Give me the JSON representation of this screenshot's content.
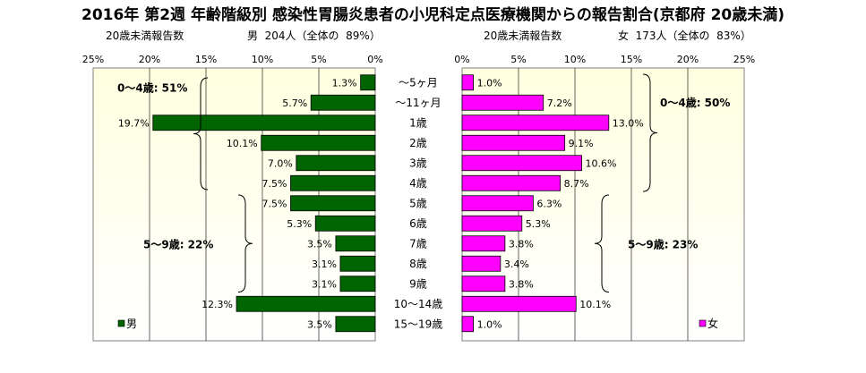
{
  "title": "2016年 第2週 年齢階級別 感染性胃腸炎患者の小児科定点医療機関からの報告割合(京都府 20歳未満)",
  "header": {
    "left_sub": "20歳未満報告数",
    "left_summary": "男  204人（全体の  89%）",
    "right_sub": "20歳未満報告数",
    "right_summary": "女  173人（全体の  83%）"
  },
  "colors": {
    "male_fill": "#006400",
    "female_fill": "#ff00ff",
    "plot_bg_top": "#ffffe0",
    "grid": "#000000"
  },
  "chart_data": [
    {
      "type": "bar",
      "orientation": "horizontal",
      "direction": "right-to-left",
      "series": [
        {
          "name": "男",
          "values": [
            1.3,
            5.7,
            19.7,
            10.1,
            7.0,
            7.5,
            7.5,
            5.3,
            3.5,
            3.1,
            3.1,
            12.3,
            3.5
          ]
        }
      ],
      "value_labels": [
        "1.3%",
        "5.7%",
        "19.7%",
        "10.1%",
        "7.0%",
        "7.5%",
        "7.5%",
        "5.3%",
        "3.5%",
        "3.1%",
        "3.1%",
        "12.3%",
        "3.5%"
      ],
      "xlim": [
        0,
        25
      ],
      "xticks": [
        "0%",
        "5%",
        "10%",
        "15%",
        "20%",
        "25%"
      ],
      "legend": "bottom-left",
      "grid": true,
      "annotations": [
        {
          "text": "0〜4歳: 51%",
          "from": 0,
          "to": 5
        },
        {
          "text": "5〜9歳: 22%",
          "from": 6,
          "to": 10
        }
      ]
    },
    {
      "type": "bar",
      "orientation": "horizontal",
      "direction": "left-to-right",
      "series": [
        {
          "name": "女",
          "values": [
            1.0,
            7.2,
            13.0,
            9.1,
            10.6,
            8.7,
            6.3,
            5.3,
            3.8,
            3.4,
            3.8,
            10.1,
            1.0
          ]
        }
      ],
      "value_labels": [
        "1.0%",
        "7.2%",
        "13.0%",
        "9.1%",
        "10.6%",
        "8.7%",
        "6.3%",
        "5.3%",
        "3.8%",
        "3.4%",
        "3.8%",
        "10.1%",
        "1.0%"
      ],
      "xlim": [
        0,
        25
      ],
      "xticks": [
        "0%",
        "5%",
        "10%",
        "15%",
        "20%",
        "25%"
      ],
      "legend": "bottom-right",
      "grid": true,
      "annotations": [
        {
          "text": "0〜4歳: 50%",
          "from": 0,
          "to": 5
        },
        {
          "text": "5〜9歳: 23%",
          "from": 6,
          "to": 10
        }
      ]
    }
  ],
  "categories": [
    "〜5ヶ月",
    "〜11ヶ月",
    "1歳",
    "2歳",
    "3歳",
    "4歳",
    "5歳",
    "6歳",
    "7歳",
    "8歳",
    "9歳",
    "10〜14歳",
    "15〜19歳"
  ]
}
